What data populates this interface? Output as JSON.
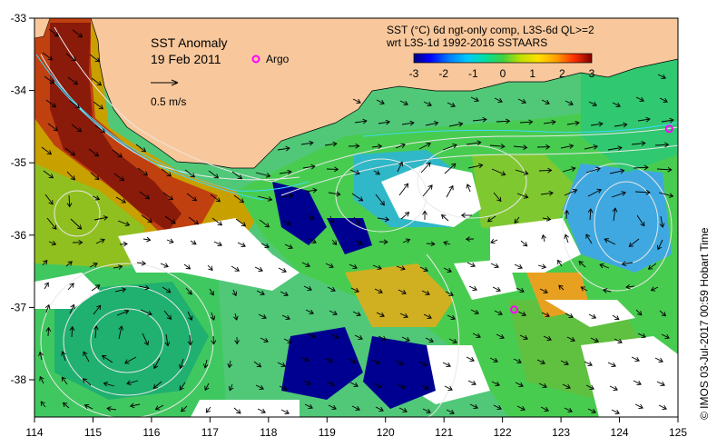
{
  "title": {
    "line1": "SST Anomaly",
    "line2": "19 Feb 2011"
  },
  "legend": {
    "argo_label": "Argo",
    "scale_label": "0.5 m/s",
    "product_line1": "SST (°C) 6d ngt-only comp, L3S-6d QL>=2",
    "product_line2": "wrt L3S-1d 1992-2016 SSTAARS",
    "colorbar_ticks": [
      "-3",
      "-2",
      "-1",
      "0",
      "1",
      "2",
      "3"
    ]
  },
  "axes": {
    "x_ticks": [
      "114",
      "115",
      "116",
      "117",
      "118",
      "119",
      "120",
      "121",
      "122",
      "123",
      "124",
      "125"
    ],
    "y_ticks": [
      "-33",
      "-34",
      "-35",
      "-36",
      "-37",
      "-38"
    ]
  },
  "credit": "© IMOS 03-Jul-2017 00:59 Hobart Time",
  "argo_floats": [
    {
      "lon": 124.85,
      "lat": -34.53
    },
    {
      "lon": 122.2,
      "lat": -37.03
    }
  ],
  "colors": {
    "land": "#f8c89c",
    "arrow": "#000000",
    "contour": "#e8e8e8",
    "argo": "#ff00ff",
    "colorbar": [
      "#000080",
      "#0000ff",
      "#0080ff",
      "#00c0ff",
      "#00e0a0",
      "#40d040",
      "#c0e000",
      "#ffe000",
      "#ffa000",
      "#ff4000",
      "#c00000",
      "#800000"
    ]
  }
}
